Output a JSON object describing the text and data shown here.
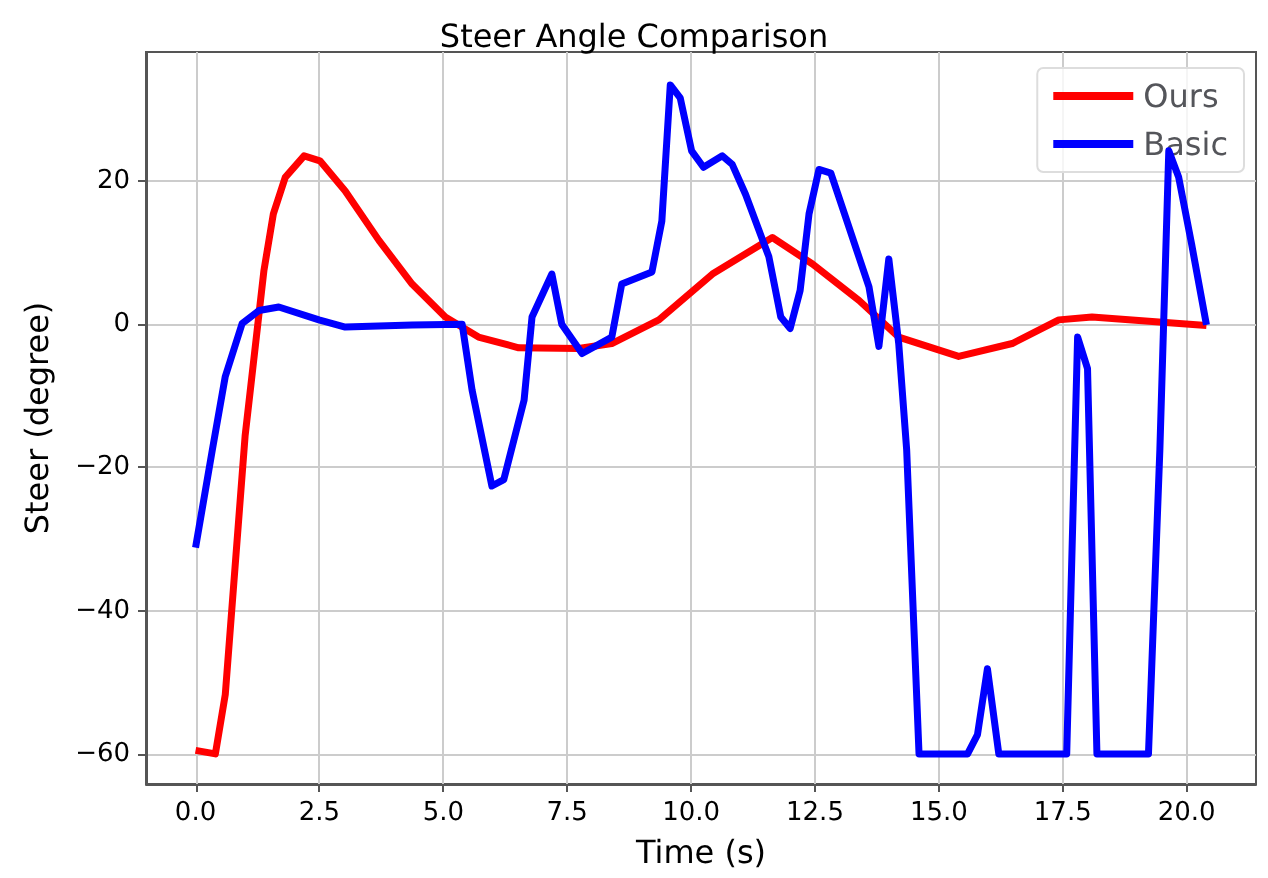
{
  "chart_data": {
    "type": "line",
    "title": "Steer Angle Comparison",
    "xlabel": "Time (s)",
    "ylabel": "Steer (degree)",
    "xlim": [
      -1.0,
      21.4
    ],
    "xticks": [
      {
        "value": 0,
        "label": "0.0"
      },
      {
        "value": 2.5,
        "label": "2.5"
      },
      {
        "value": 5,
        "label": "5.0"
      },
      {
        "value": 7.5,
        "label": "7.5"
      },
      {
        "value": 10,
        "label": "10.0"
      },
      {
        "value": 12.5,
        "label": "12.5"
      },
      {
        "value": 15,
        "label": "15.0"
      },
      {
        "value": 17.5,
        "label": "17.5"
      },
      {
        "value": 20,
        "label": "20.0"
      }
    ],
    "ylim": [
      -64.2,
      38
    ],
    "yticks": [
      {
        "value": -60,
        "label": "−60"
      },
      {
        "value": -40,
        "label": "−40"
      },
      {
        "value": -20,
        "label": "−20"
      },
      0,
      20
    ],
    "grid": true,
    "legend": "top right",
    "marker": "none",
    "line_style": "solid",
    "series": [
      {
        "name": "Ours",
        "color": "#ff0000",
        "x": [
          0,
          0.4,
          0.6,
          1.0,
          1.38,
          1.57,
          1.81,
          2.19,
          2.51,
          3.02,
          3.7,
          4.37,
          5.04,
          5.71,
          6.52,
          7.73,
          8.4,
          9.21,
          9.35,
          10.43,
          11.64,
          12.45,
          13.39,
          14.19,
          15.4,
          16.48,
          17.42,
          18.09,
          19.44,
          20.4
        ],
        "values": [
          -59.5,
          -60,
          -51.7,
          -15.6,
          7.5,
          15.4,
          20.5,
          23.5,
          22.8,
          18.6,
          11.7,
          5.6,
          1.0,
          -1.8,
          -3.3,
          -3.4,
          -2.7,
          0.1,
          0.6,
          7.0,
          12.1,
          8.4,
          3.3,
          -1.8,
          -4.5,
          -2.7,
          0.6,
          1.0,
          0.3,
          -0.2
        ]
      },
      {
        "name": "Basic",
        "color": "#0000ff",
        "x": [
          0,
          0.34,
          0.6,
          0.94,
          1.28,
          1.68,
          2.49,
          3.02,
          4.37,
          5.38,
          5.58,
          5.98,
          6.22,
          6.63,
          6.79,
          7.19,
          7.39,
          7.8,
          8.4,
          8.6,
          9.21,
          9.41,
          9.58,
          9.78,
          10.01,
          10.25,
          10.63,
          10.83,
          11.1,
          11.57,
          11.81,
          12.0,
          12.2,
          12.38,
          12.58,
          12.82,
          13.12,
          13.59,
          13.79,
          13.99,
          14.19,
          14.35,
          14.6,
          15.58,
          15.78,
          15.98,
          16.21,
          17.58,
          17.8,
          18.0,
          18.19,
          19.23,
          19.46,
          19.64,
          19.84,
          20.1,
          20.4
        ],
        "values": [
          -31.2,
          -17.5,
          -7.3,
          0.1,
          1.9,
          2.4,
          0.6,
          -0.4,
          -0.1,
          0,
          -9.2,
          -22.6,
          -21.7,
          -10.6,
          1.0,
          7.0,
          0,
          -4.1,
          -1.8,
          5.6,
          7.3,
          14.4,
          33.4,
          31.6,
          24.2,
          21.9,
          23.5,
          22.3,
          18.1,
          9.4,
          1.0,
          -0.6,
          4.7,
          15.4,
          21.6,
          21.1,
          14.9,
          5.2,
          -3.1,
          9.1,
          -2.7,
          -17.5,
          -60,
          -60,
          -57.3,
          -48.1,
          -60,
          -60,
          -1.8,
          -6.2,
          -60,
          -60,
          -17.5,
          24.2,
          20.5,
          11.2,
          -0.1
        ]
      }
    ]
  }
}
